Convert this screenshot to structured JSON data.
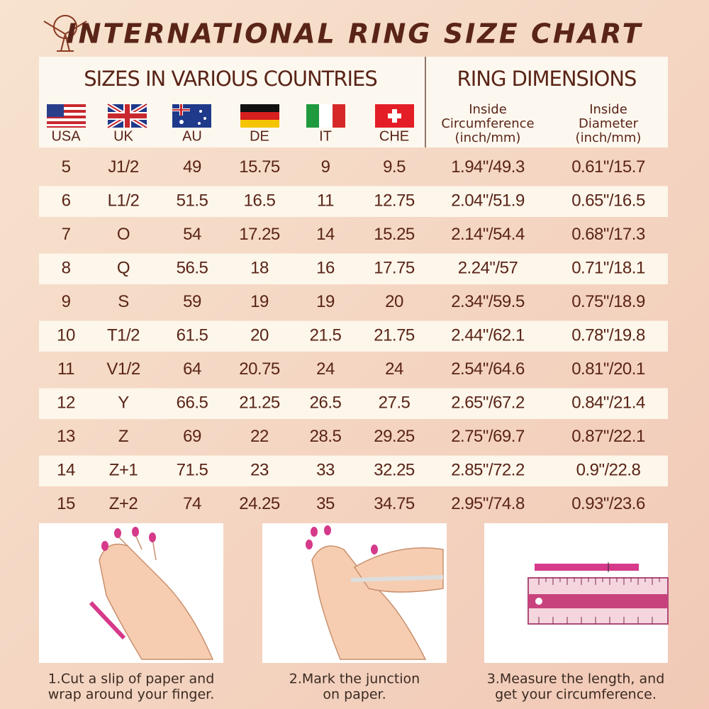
{
  "header": {
    "title": "INTERNATIONAL RING SIZE CHART"
  },
  "table": {
    "group_headers": [
      "SIZES IN VARIOUS COUNTRIES",
      "RING DIMENSIONS"
    ],
    "columns": [
      "USA",
      "UK",
      "AU",
      "DE",
      "IT",
      "CHE"
    ],
    "dimension_columns": [
      [
        "Inside",
        "Circumference",
        "(inch/mm)"
      ],
      [
        "Inside",
        "Diameter",
        "(inch/mm)"
      ]
    ],
    "rows": [
      [
        5,
        "J1/2",
        49,
        15.75,
        9,
        9.5,
        "1.94\"/49.3",
        "0.61\"/15.7"
      ],
      [
        6,
        "L1/2",
        51.5,
        16.5,
        11,
        12.75,
        "2.04\"/51.9",
        "0.65\"/16.5"
      ],
      [
        7,
        "O",
        54,
        17.25,
        14,
        15.25,
        "2.14\"/54.4",
        "0.68\"/17.3"
      ],
      [
        8,
        "Q",
        56.5,
        18,
        16,
        17.75,
        "2.24\"/57",
        "0.71\"/18.1"
      ],
      [
        9,
        "S",
        59,
        19,
        19,
        20,
        "2.34\"/59.5",
        "0.75\"/18.9"
      ],
      [
        10,
        "T1/2",
        61.5,
        20,
        21.5,
        21.75,
        "2.44\"/62.1",
        "0.78\"/19.8"
      ],
      [
        11,
        "V1/2",
        64,
        20.75,
        24,
        24,
        "2.54\"/64.6",
        "0.81\"/20.1"
      ],
      [
        12,
        "Y",
        66.5,
        21.25,
        26.5,
        27.5,
        "2.65\"/67.2",
        "0.84\"/21.4"
      ],
      [
        13,
        "Z",
        69,
        22,
        28.5,
        29.25,
        "2.75\"/69.7",
        "0.87\"/22.1"
      ],
      [
        14,
        "Z+1",
        71.5,
        23,
        33,
        32.25,
        "2.85\"/72.2",
        "0.9\"/22.8"
      ],
      [
        15,
        "Z+2",
        74,
        24.25,
        35,
        34.75,
        "2.95\"/74.8",
        "0.93\"/23.6"
      ]
    ]
  },
  "steps": [
    [
      "1.Cut a slip of paper and",
      "wrap around your finger."
    ],
    [
      "2.Mark the junction",
      "on paper."
    ],
    [
      "3.Measure the length, and",
      "get your circumference."
    ]
  ]
}
